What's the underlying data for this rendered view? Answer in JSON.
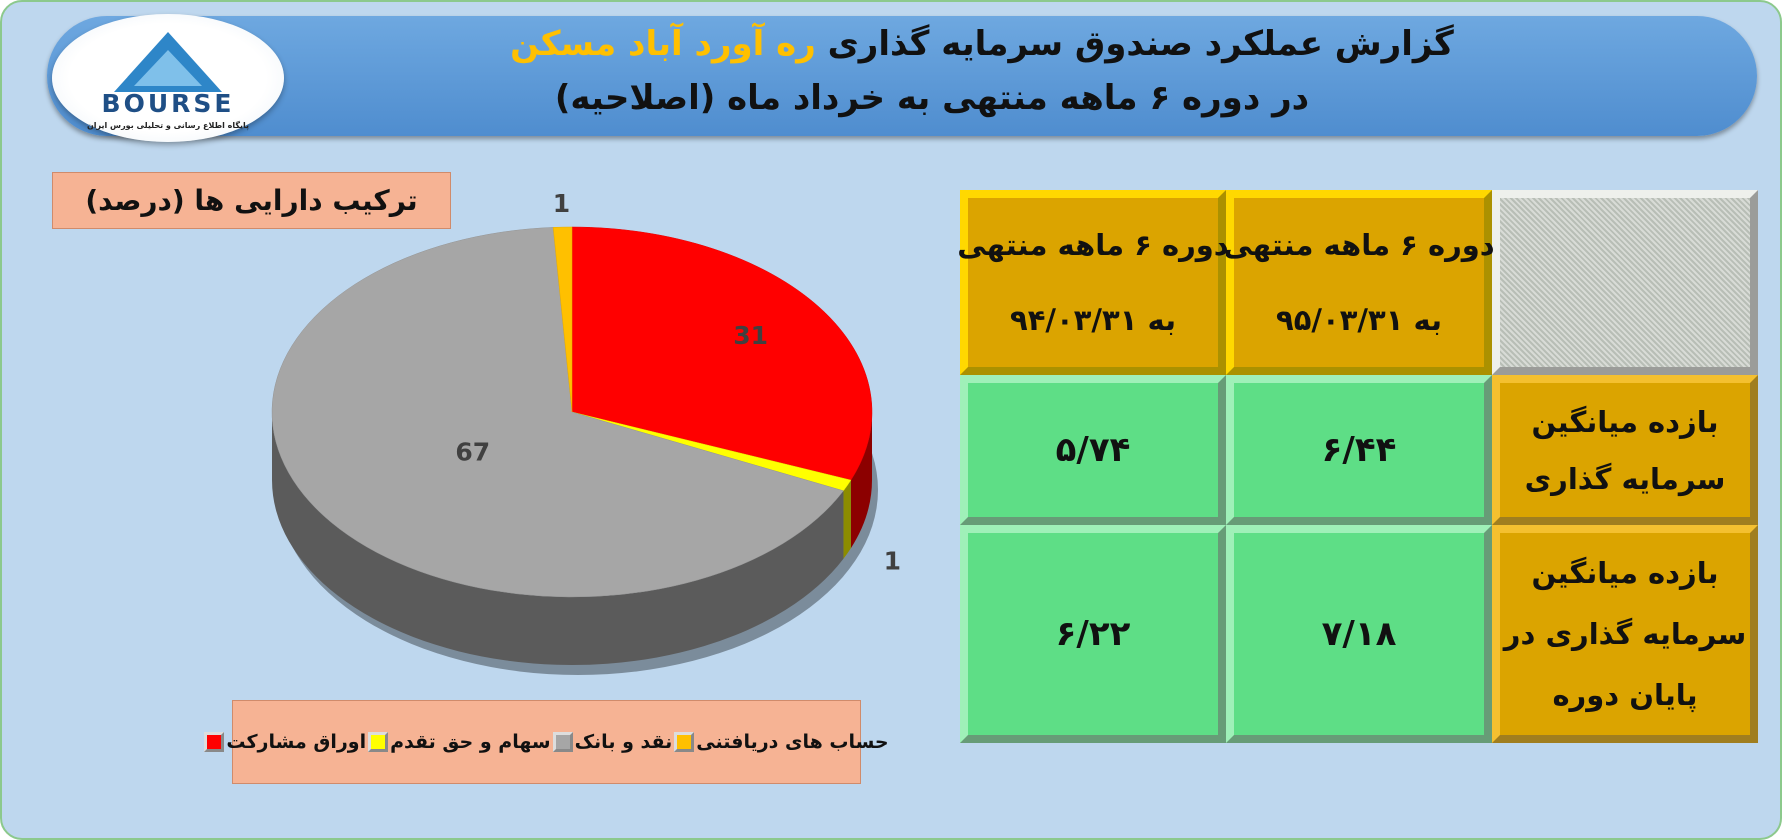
{
  "header": {
    "title": "گزارش عملکرد صندوق سرمایه گذاری",
    "title_highlight": "ره آورد آباد مسکن",
    "subtitle": "در دوره ۶ ماهه منتهی به خرداد ماه (اصلاحیه)"
  },
  "logo": {
    "name": "BOURSE",
    "tagline": "پایگاه اطلاع رسانی و تحلیلی بورس ایران"
  },
  "chart_data": {
    "type": "pie",
    "title": "ترکیب دارایی ها (درصد)",
    "categories": [
      "اوراق مشارکت",
      "سهام و حق تقدم",
      "نقد و بانک",
      "حساب های دریافتنی"
    ],
    "values": [
      31,
      1,
      67,
      1
    ],
    "colors": [
      "#ff0000",
      "#ffff00",
      "#a6a6a6",
      "#ffc000"
    ],
    "three_d": true
  },
  "table": {
    "columns": [
      [
        "دوره ۶ ماهه منتهی",
        "به ۹۵/۰۳/۳۱"
      ],
      [
        "دوره ۶ ماهه منتهی",
        "به ۹۴/۰۳/۳۱"
      ]
    ],
    "rows": [
      {
        "label": [
          "بازده میانگین",
          "سرمایه گذاری"
        ],
        "values": [
          "۶/۴۴",
          "۵/۷۴"
        ]
      },
      {
        "label": [
          "بازده میانگین",
          "سرمایه گذاری در",
          "پایان دوره"
        ],
        "values": [
          "۷/۱۸",
          "۶/۲۲"
        ]
      }
    ]
  }
}
